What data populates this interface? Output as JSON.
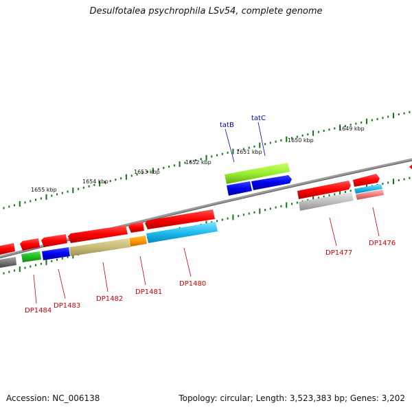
{
  "title": "Desulfotalea psychrophila LSv54, complete genome",
  "footer": {
    "accession": "Accession: NC_006138",
    "summary": "Topology: circular; Length: 3,523,383 bp; Genes: 3,202"
  },
  "colors": {
    "backbone": "#808080",
    "ticks": "#117711",
    "label_red": "#cc0000",
    "label_blue": "#0000bb"
  },
  "kbp_labels": [
    "1655 kbp",
    "1654 kbp",
    "1653 kbp",
    "1652 kbp",
    "1651 kbp",
    "1650 kbp",
    "1649 kbp"
  ],
  "gene_labels": [
    {
      "text": "tatB",
      "color": "blue"
    },
    {
      "text": "tatC",
      "color": "blue"
    },
    {
      "text": "DP1484",
      "color": "red"
    },
    {
      "text": "DP1483",
      "color": "red"
    },
    {
      "text": "DP1482",
      "color": "red"
    },
    {
      "text": "DP1481",
      "color": "red"
    },
    {
      "text": "DP1480",
      "color": "red"
    },
    {
      "text": "DP1477",
      "color": "red"
    },
    {
      "text": "DP1476",
      "color": "red"
    }
  ]
}
